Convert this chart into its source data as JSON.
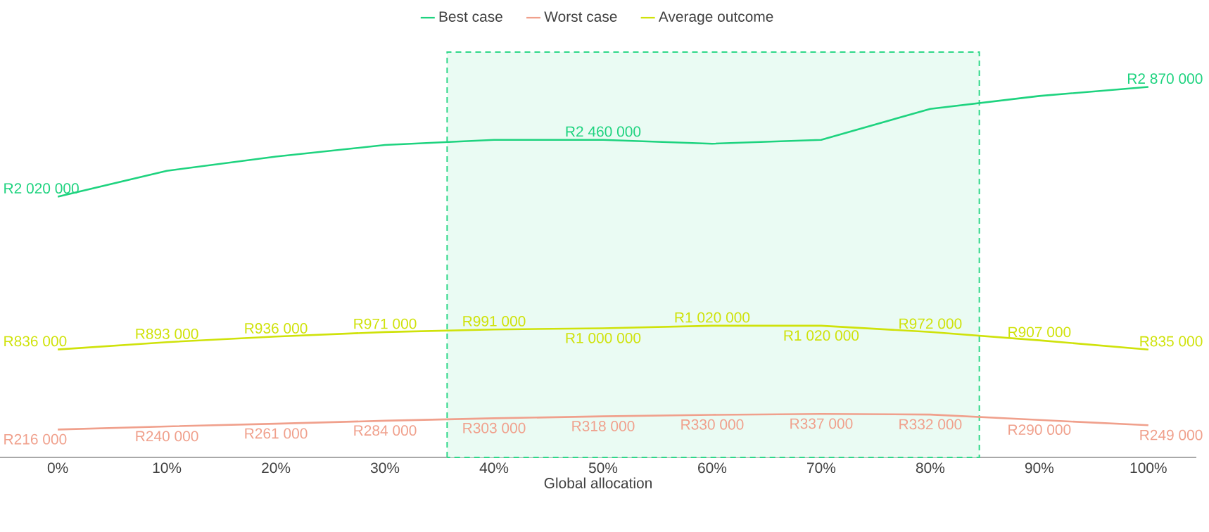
{
  "chart_data": {
    "type": "line",
    "xlabel": "Global allocation",
    "x": [
      0,
      10,
      20,
      30,
      40,
      50,
      60,
      70,
      80,
      90,
      100
    ],
    "xlim": [
      -5.3,
      104.4
    ],
    "xticks": [
      {
        "value": 0,
        "label": "0%"
      },
      {
        "value": 10,
        "label": "10%"
      },
      {
        "value": 20,
        "label": "20%"
      },
      {
        "value": 30,
        "label": "30%"
      },
      {
        "value": 40,
        "label": "40%"
      },
      {
        "value": 50,
        "label": "50%"
      },
      {
        "value": 60,
        "label": "60%"
      },
      {
        "value": 70,
        "label": "70%"
      },
      {
        "value": 80,
        "label": "80%"
      },
      {
        "value": 90,
        "label": "90%"
      },
      {
        "value": 100,
        "label": "100%"
      }
    ],
    "tick_labels": "x",
    "legend": "top",
    "bands": [
      {
        "axis": "x",
        "from": 35.7,
        "to": 84.5,
        "color": "#2ed889"
      }
    ],
    "series": [
      {
        "name": "Best case",
        "color": "#1ed37f",
        "values": [
          2020000,
          2220000,
          2330000,
          2420000,
          2460000,
          2460000,
          2430000,
          2460000,
          2700000,
          2800000,
          2870000
        ],
        "value_labels": [
          "R2 020 000",
          null,
          null,
          null,
          null,
          "R2 460 000",
          null,
          null,
          null,
          null,
          "R2 870 000"
        ]
      },
      {
        "name": "Worst case",
        "color": "#f0a08c",
        "values": [
          216000,
          240000,
          261000,
          284000,
          303000,
          318000,
          330000,
          337000,
          332000,
          290000,
          249000
        ],
        "value_labels": [
          "R216 000",
          "R240 000",
          "R261 000",
          "R284 000",
          "R303 000",
          "R318 000",
          "R330 000",
          "R337 000",
          "R332 000",
          "R290 000",
          "R249 000"
        ]
      },
      {
        "name": "Average outcome",
        "color": "#cfe20a",
        "values": [
          836000,
          893000,
          936000,
          971000,
          991000,
          1000000,
          1020000,
          1020000,
          972000,
          907000,
          835000
        ],
        "value_labels": [
          "R836 000",
          "R893 000",
          "R936 000",
          "R971 000",
          "R991 000",
          "R1 000 000",
          "R1 020 000",
          "R1 020 000",
          "R972 000",
          "R907 000",
          "R835 000"
        ]
      }
    ]
  }
}
